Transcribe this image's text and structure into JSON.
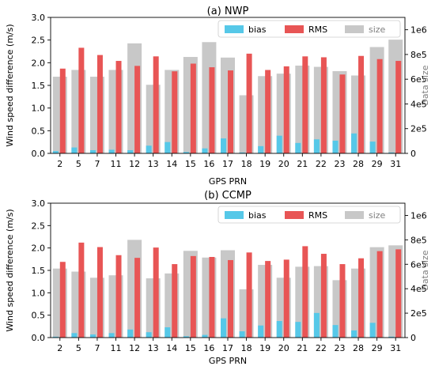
{
  "chart_data": [
    {
      "type": "bar",
      "title": "(a) NWP",
      "xlabel": "GPS PRN",
      "ylabel": "Wind speed difference (m/s)",
      "ylabel_right": "Data size",
      "categories": [
        "2",
        "5",
        "7",
        "11",
        "12",
        "13",
        "14",
        "15",
        "16",
        "17",
        "18",
        "19",
        "20",
        "21",
        "22",
        "23",
        "28",
        "29",
        "31"
      ],
      "ylim": [
        0,
        3.0
      ],
      "yticks": [
        "0.0",
        "0.5",
        "1.0",
        "1.5",
        "2.0",
        "2.5",
        "3.0"
      ],
      "ylim_right": [
        0,
        1100000
      ],
      "yticks_right": [
        "0",
        "2e5",
        "4e5",
        "6e5",
        "8e5",
        "1e6"
      ],
      "legend_position": "top-right",
      "series": [
        {
          "name": "bias",
          "axis": "left",
          "color": "#56c8e8",
          "values": [
            0.05,
            0.13,
            0.07,
            0.08,
            0.07,
            0.17,
            0.25,
            0.03,
            0.11,
            0.33,
            0.02,
            0.16,
            0.39,
            0.23,
            0.31,
            0.28,
            0.44,
            0.26,
            0.02
          ]
        },
        {
          "name": "RMS",
          "axis": "left",
          "color": "#e85555",
          "values": [
            1.87,
            2.33,
            2.17,
            2.04,
            1.93,
            2.14,
            1.81,
            1.98,
            1.9,
            1.83,
            2.2,
            1.84,
            1.92,
            2.14,
            2.12,
            1.74,
            2.15,
            2.08,
            2.04
          ]
        },
        {
          "name": "size",
          "axis": "right",
          "color": "#c8c8c8",
          "values": [
            620000,
            675000,
            620000,
            675000,
            890000,
            555000,
            675000,
            780000,
            900000,
            775000,
            470000,
            625000,
            645000,
            710000,
            700000,
            665000,
            630000,
            860000,
            920000
          ]
        }
      ]
    },
    {
      "type": "bar",
      "title": "(b) CCMP",
      "xlabel": "GPS PRN",
      "ylabel": "Wind speed difference (m/s)",
      "ylabel_right": "Data size",
      "categories": [
        "2",
        "5",
        "7",
        "11",
        "12",
        "13",
        "14",
        "15",
        "16",
        "17",
        "18",
        "19",
        "20",
        "21",
        "22",
        "23",
        "28",
        "29",
        "31"
      ],
      "ylim": [
        0,
        3.0
      ],
      "yticks": [
        "0.0",
        "0.5",
        "1.0",
        "1.5",
        "2.0",
        "2.5",
        "3.0"
      ],
      "ylim_right": [
        0,
        1100000
      ],
      "yticks_right": [
        "0",
        "2e5",
        "4e5",
        "6e5",
        "8e5",
        "1e6"
      ],
      "legend_position": "top-right",
      "series": [
        {
          "name": "bias",
          "axis": "left",
          "color": "#56c8e8",
          "values": [
            0.02,
            0.1,
            0.07,
            0.1,
            0.18,
            0.12,
            0.23,
            0.03,
            0.06,
            0.43,
            0.14,
            0.27,
            0.37,
            0.35,
            0.55,
            0.28,
            0.16,
            0.33,
            0.02
          ]
        },
        {
          "name": "RMS",
          "axis": "left",
          "color": "#e85555",
          "values": [
            1.69,
            2.12,
            2.02,
            1.84,
            1.78,
            2.01,
            1.64,
            1.82,
            1.8,
            1.73,
            1.9,
            1.71,
            1.74,
            2.04,
            1.87,
            1.64,
            1.77,
            1.93,
            1.97
          ]
        },
        {
          "name": "size",
          "axis": "right",
          "color": "#c8c8c8",
          "values": [
            565000,
            540000,
            490000,
            510000,
            800000,
            485000,
            525000,
            710000,
            655000,
            715000,
            395000,
            595000,
            490000,
            580000,
            585000,
            470000,
            565000,
            740000,
            755000
          ]
        }
      ]
    }
  ]
}
